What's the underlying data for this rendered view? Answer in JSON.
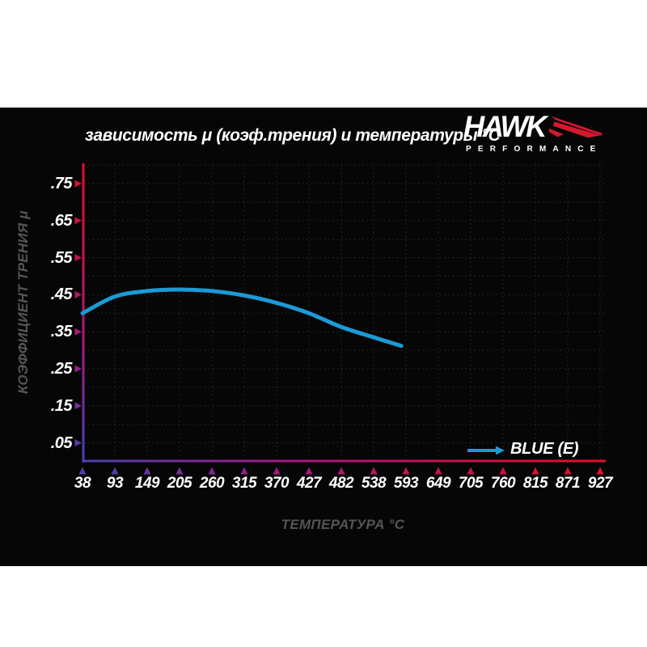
{
  "header": {
    "logo": {
      "brand": "HAWK",
      "subtext": "PERFORMANCE"
    }
  },
  "chart_data": {
    "type": "line",
    "title": "зависимость μ (коэф.трения) и температуры °C",
    "xlabel": "ТЕМПЕРАТУРА °C",
    "ylabel": "КОЭФФИЦИЕНТ ТРЕНИЯ μ",
    "x_ticks": [
      38,
      93,
      149,
      205,
      260,
      315,
      370,
      427,
      482,
      538,
      593,
      649,
      705,
      760,
      815,
      871,
      927
    ],
    "y_tick_labels": [
      ".75",
      ".65",
      ".55",
      ".45",
      ".35",
      ".25",
      ".15",
      ".05"
    ],
    "y_tick_values": [
      0.75,
      0.65,
      0.55,
      0.45,
      0.35,
      0.25,
      0.15,
      0.05
    ],
    "ylim": [
      0,
      0.8
    ],
    "grid": {
      "horizontal_step_mu": 0.05,
      "vertical": "at every temperature tick",
      "style": "dotted"
    },
    "series": [
      {
        "name": "BLUE (E)",
        "color": "#1b9ad6",
        "x": [
          38,
          93,
          149,
          205,
          260,
          315,
          370,
          427,
          482,
          538,
          585
        ],
        "y": [
          0.4,
          0.445,
          0.46,
          0.464,
          0.46,
          0.448,
          0.428,
          0.4,
          0.363,
          0.335,
          0.312
        ]
      }
    ],
    "legend": {
      "label": "BLUE (E)",
      "position": "bottom-right"
    }
  },
  "colors": {
    "page_bg": "#ffffff",
    "panel_bg": "#060606",
    "grid_dots": "#343434",
    "text_white": "#ffffff",
    "text_gray": "#555559",
    "curve_blue": "#1b9ad6",
    "axis_red": "#e60d28",
    "axis_magenta": "#c21457",
    "axis_purple": "#a21b86",
    "axis_indigo": "#4a41ae",
    "hawk_red": "#d6182f"
  }
}
